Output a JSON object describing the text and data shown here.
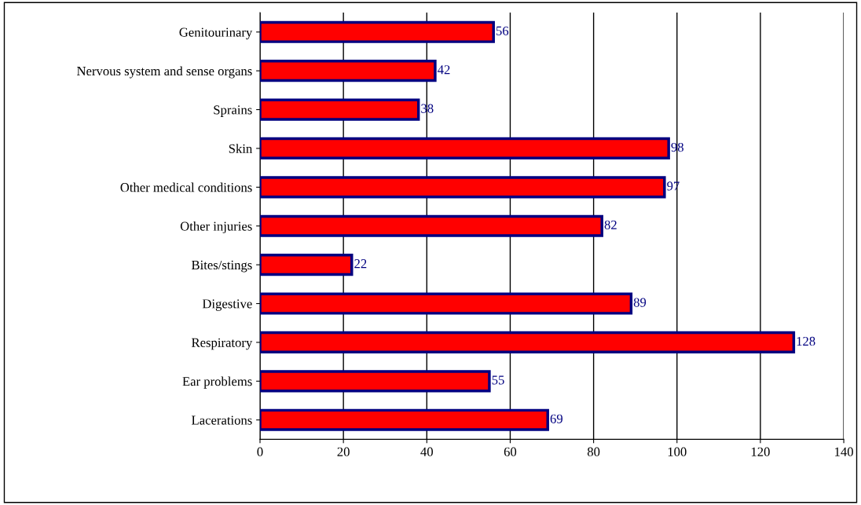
{
  "chart_data": {
    "type": "bar",
    "orientation": "horizontal",
    "categories": [
      "Genitourinary",
      "Nervous system and sense organs",
      "Sprains",
      "Skin",
      "Other medical conditions",
      "Other injuries",
      "Bites/stings",
      "Digestive",
      "Respiratory",
      "Ear problems",
      "Lacerations"
    ],
    "values": [
      56,
      42,
      38,
      98,
      97,
      82,
      22,
      89,
      128,
      55,
      69
    ],
    "color": "#ff0000",
    "data_labels": true,
    "grid": "x",
    "xlim": [
      0,
      140
    ],
    "xticks": [
      0,
      20,
      40,
      60,
      80,
      100,
      120,
      140
    ],
    "legend": false
  }
}
